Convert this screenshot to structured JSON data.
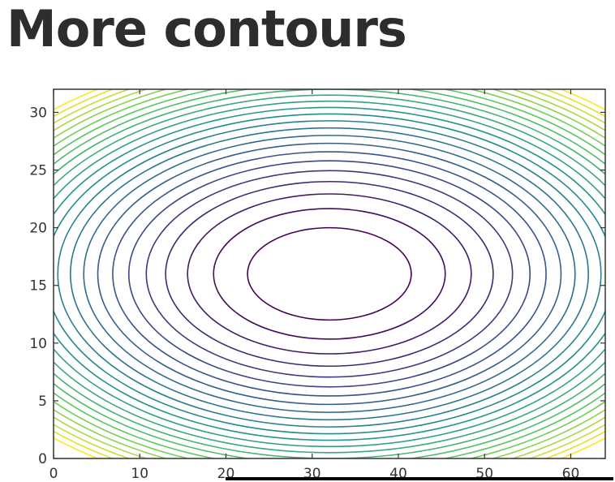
{
  "slide": {
    "title": "More contours"
  },
  "chart_data": {
    "type": "contour",
    "title": "",
    "xlabel": "",
    "ylabel": "",
    "xlim": [
      0,
      64
    ],
    "ylim": [
      0,
      32
    ],
    "xticks": [
      0,
      10,
      20,
      30,
      40,
      50,
      60
    ],
    "yticks": [
      0,
      5,
      10,
      15,
      20,
      25,
      30
    ],
    "center": [
      32,
      16
    ],
    "semi_axes_of_innermost_level": [
      9.5,
      4.0
    ],
    "level_count": 24,
    "colormap": "viridis",
    "colormap_stops": [
      "#440154",
      "#3b528b",
      "#21918c",
      "#5ec962",
      "#fde725"
    ],
    "grid": false,
    "legend": false
  },
  "colors": {
    "title_text": "#2d2d2d",
    "axes_frame": "#333333",
    "tick_text": "#333333",
    "background": "#ffffff"
  }
}
